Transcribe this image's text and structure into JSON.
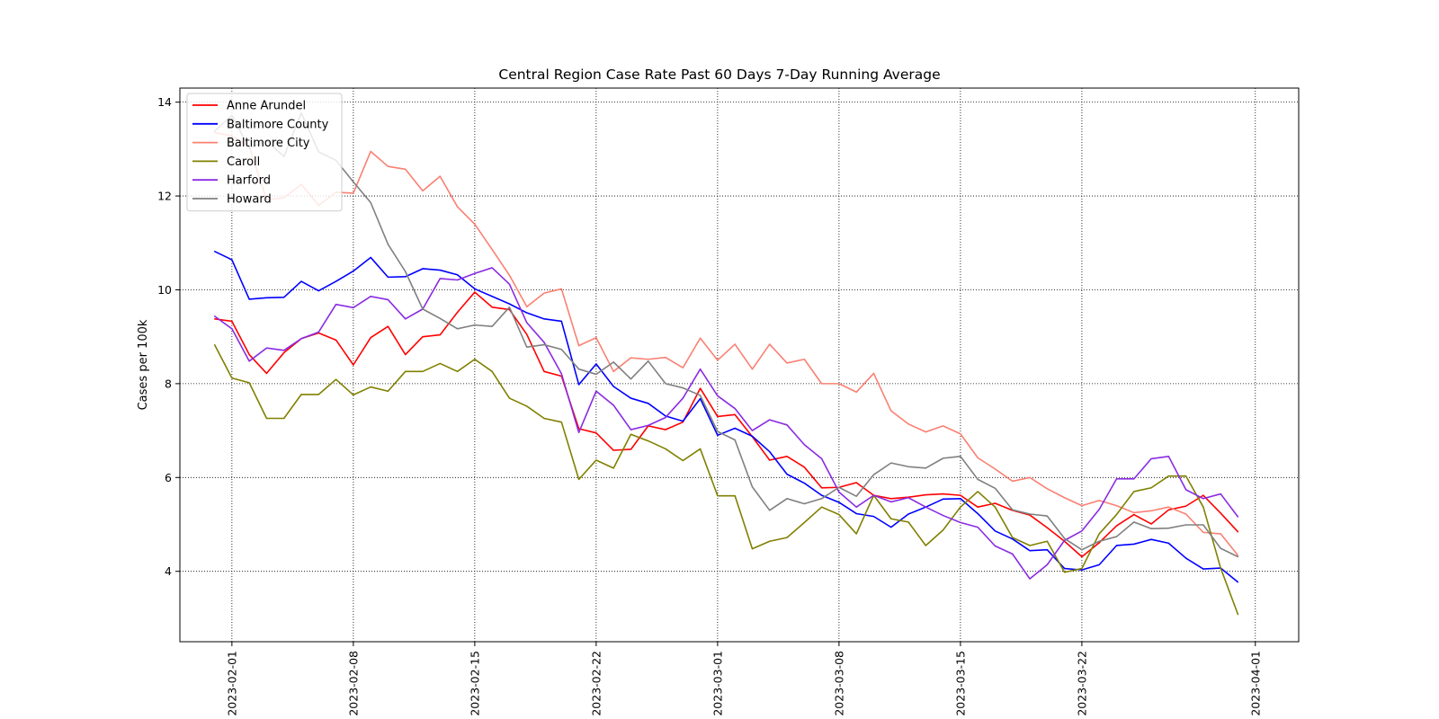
{
  "chart_data": {
    "type": "line",
    "title": "Central Region Case Rate  Past 60 Days 7-Day Running Average",
    "xlabel": "",
    "ylabel": "Cases per 100k",
    "start_date": "2023-01-31",
    "x_ticks": [
      "2023-02-01",
      "2023-02-08",
      "2023-02-15",
      "2023-02-22",
      "2023-03-01",
      "2023-03-08",
      "2023-03-15",
      "2023-03-22",
      "2023-04-01"
    ],
    "y_ticks": [
      4,
      6,
      8,
      10,
      12,
      14
    ],
    "ylim": [
      2.5,
      14.3
    ],
    "grid": true,
    "legend_position": "top-left",
    "series": [
      {
        "name": "Anne Arundel",
        "color": "#ff0000",
        "values": [
          9.38,
          9.33,
          8.62,
          8.22,
          8.66,
          8.96,
          9.08,
          8.93,
          8.4,
          8.98,
          9.22,
          8.62,
          9.0,
          9.04,
          9.52,
          9.95,
          9.63,
          9.58,
          9.05,
          8.26,
          8.16,
          7.04,
          6.95,
          6.58,
          6.6,
          7.1,
          7.02,
          7.18,
          7.9,
          7.3,
          7.34,
          6.87,
          6.37,
          6.45,
          6.22,
          5.78,
          5.79,
          5.89,
          5.62,
          5.55,
          5.58,
          5.63,
          5.65,
          5.62,
          5.37,
          5.45,
          5.3,
          5.2,
          4.93,
          4.64,
          4.31,
          4.61,
          4.97,
          5.21,
          5.01,
          5.31,
          5.39,
          5.62,
          5.24,
          4.84
        ]
      },
      {
        "name": "Baltimore County",
        "color": "#0000ff",
        "values": [
          10.82,
          10.64,
          9.8,
          9.83,
          9.84,
          10.18,
          9.98,
          10.18,
          10.4,
          10.69,
          10.27,
          10.28,
          10.45,
          10.42,
          10.32,
          10.02,
          9.86,
          9.7,
          9.51,
          9.38,
          9.33,
          7.98,
          8.42,
          7.94,
          7.69,
          7.58,
          7.31,
          7.2,
          7.68,
          6.9,
          7.05,
          6.88,
          6.55,
          6.07,
          5.88,
          5.62,
          5.47,
          5.23,
          5.17,
          4.94,
          5.22,
          5.37,
          5.54,
          5.55,
          5.23,
          4.86,
          4.69,
          4.44,
          4.46,
          4.06,
          4.03,
          4.14,
          4.55,
          4.58,
          4.68,
          4.6,
          4.28,
          4.05,
          4.07,
          3.77
        ]
      },
      {
        "name": "Baltimore City",
        "color": "#fa8072",
        "values": [
          13.35,
          13.28,
          13.05,
          11.92,
          11.96,
          12.25,
          11.8,
          12.08,
          12.06,
          12.95,
          12.63,
          12.57,
          12.11,
          12.42,
          11.77,
          11.4,
          10.86,
          10.31,
          9.64,
          9.93,
          10.02,
          8.81,
          8.98,
          8.26,
          8.55,
          8.52,
          8.56,
          8.34,
          8.97,
          8.5,
          8.84,
          8.31,
          8.84,
          8.44,
          8.52,
          8.0,
          8.0,
          7.82,
          8.22,
          7.42,
          7.14,
          6.97,
          7.1,
          6.93,
          6.42,
          6.18,
          5.92,
          6.0,
          5.76,
          5.57,
          5.4,
          5.51,
          5.4,
          5.25,
          5.29,
          5.37,
          5.22,
          4.83,
          4.8,
          4.34
        ]
      },
      {
        "name": "Caroll",
        "color": "#808000",
        "values": [
          8.83,
          8.12,
          8.02,
          7.26,
          7.26,
          7.77,
          7.77,
          8.09,
          7.76,
          7.93,
          7.84,
          8.26,
          8.26,
          8.43,
          8.26,
          8.52,
          8.26,
          7.69,
          7.52,
          7.26,
          7.18,
          5.96,
          6.37,
          6.2,
          6.92,
          6.78,
          6.61,
          6.36,
          6.61,
          5.61,
          5.61,
          4.48,
          4.64,
          4.72,
          5.04,
          5.37,
          5.21,
          4.8,
          5.62,
          5.12,
          5.05,
          4.55,
          4.88,
          5.37,
          5.7,
          5.37,
          4.72,
          4.55,
          4.64,
          3.98,
          4.06,
          4.8,
          5.21,
          5.7,
          5.78,
          6.03,
          6.03,
          5.37,
          4.07,
          3.08
        ]
      },
      {
        "name": "Harford",
        "color": "#8a2be2",
        "values": [
          9.44,
          9.17,
          8.48,
          8.76,
          8.71,
          8.96,
          9.1,
          9.69,
          9.62,
          9.86,
          9.79,
          9.38,
          9.59,
          10.24,
          10.21,
          10.35,
          10.47,
          10.12,
          9.3,
          8.88,
          8.21,
          6.96,
          7.84,
          7.54,
          7.02,
          7.11,
          7.28,
          7.69,
          8.31,
          7.74,
          7.47,
          7.0,
          7.23,
          7.12,
          6.7,
          6.4,
          5.69,
          5.37,
          5.62,
          5.48,
          5.57,
          5.37,
          5.19,
          5.04,
          4.94,
          4.54,
          4.37,
          3.84,
          4.14,
          4.66,
          4.86,
          5.32,
          5.97,
          5.97,
          6.4,
          6.45,
          5.74,
          5.55,
          5.65,
          5.16
        ]
      },
      {
        "name": "Howard",
        "color": "#808080",
        "values": [
          13.38,
          13.72,
          13.02,
          13.18,
          12.84,
          13.77,
          12.94,
          12.76,
          12.3,
          11.86,
          10.97,
          10.39,
          9.59,
          9.39,
          9.17,
          9.25,
          9.22,
          9.63,
          8.78,
          8.83,
          8.73,
          8.31,
          8.2,
          8.46,
          8.1,
          8.48,
          8.0,
          7.91,
          7.75,
          6.98,
          6.8,
          5.8,
          5.3,
          5.55,
          5.44,
          5.55,
          5.79,
          5.6,
          6.06,
          6.31,
          6.23,
          6.2,
          6.41,
          6.45,
          5.96,
          5.77,
          5.31,
          5.22,
          5.18,
          4.7,
          4.46,
          4.64,
          4.74,
          5.05,
          4.91,
          4.92,
          4.99,
          4.99,
          4.49,
          4.31
        ]
      }
    ]
  }
}
